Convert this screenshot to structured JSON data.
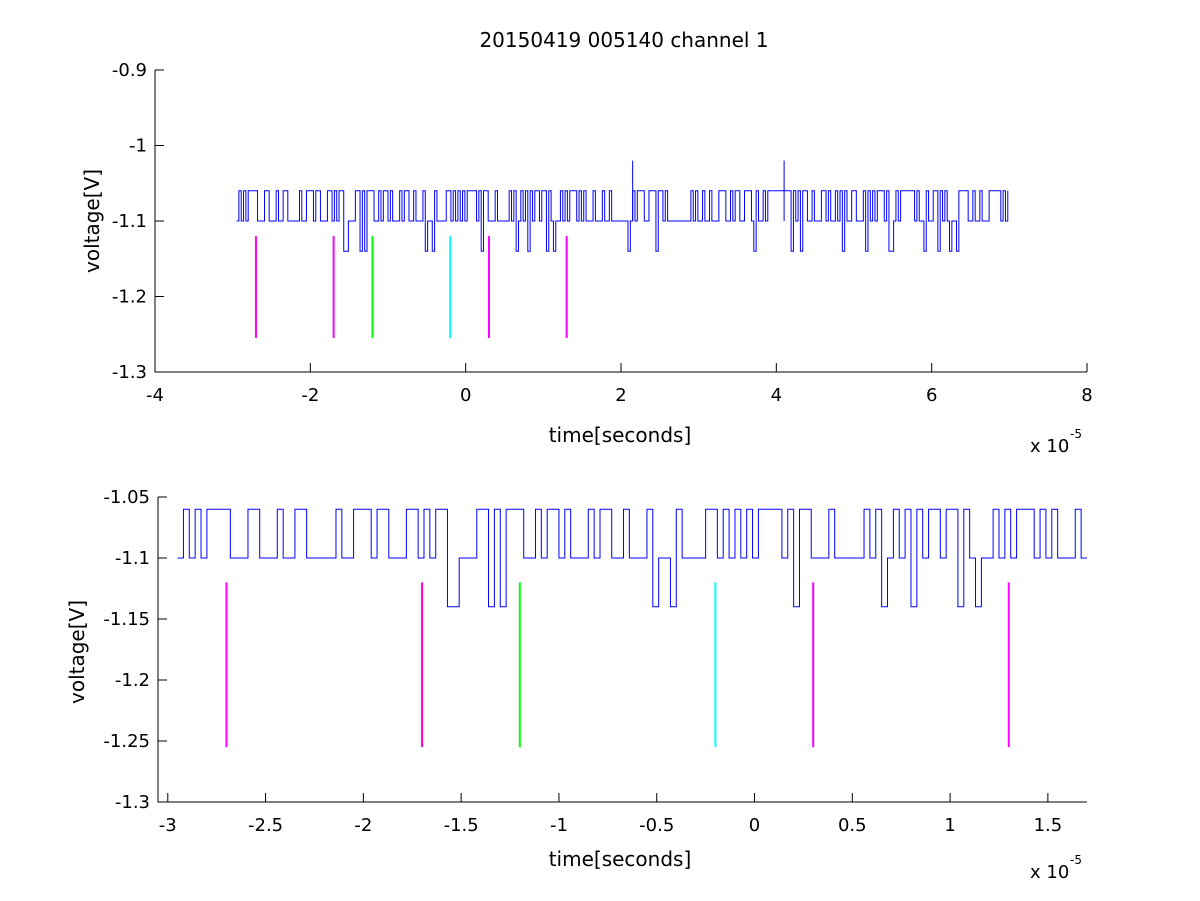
{
  "chart_data": [
    {
      "type": "line",
      "title": "20150419 005140 channel 1",
      "xlabel": "time[seconds]",
      "ylabel": "voltage[V]",
      "x_exponent_label": "x 10",
      "x_exponent": "-5",
      "xlim": [
        -4,
        8
      ],
      "ylim": [
        -1.3,
        -0.9
      ],
      "x_ticks": [
        -4,
        -2,
        0,
        2,
        4,
        6,
        8
      ],
      "x_tick_labels": [
        "-4",
        "-2",
        "0",
        "2",
        "4",
        "6",
        "8"
      ],
      "y_ticks": [
        -1.3,
        -1.2,
        -1.1,
        -1.0,
        -0.9
      ],
      "y_tick_labels": [
        "-1.3",
        "-1.2",
        "-1.1",
        "-1",
        "-0.9"
      ],
      "grid": false,
      "series": [
        {
          "color": "#0000ff",
          "x_range": [
            -2.95,
            7.0
          ],
          "baseline": -1.1,
          "high": -1.06,
          "low": -1.14,
          "spikes": [
            [
              2.15,
              -1.02
            ],
            [
              4.1,
              -1.02
            ]
          ]
        }
      ],
      "markers": [
        {
          "x": -2.7,
          "y_top": -1.12,
          "y_bottom": -1.255,
          "color": "#ff00ff"
        },
        {
          "x": -1.7,
          "y_top": -1.12,
          "y_bottom": -1.255,
          "color": "#ff00ff"
        },
        {
          "x": -1.2,
          "y_top": -1.12,
          "y_bottom": -1.255,
          "color": "#00ff00"
        },
        {
          "x": -0.2,
          "y_top": -1.12,
          "y_bottom": -1.255,
          "color": "#00ffff"
        },
        {
          "x": 0.3,
          "y_top": -1.12,
          "y_bottom": -1.255,
          "color": "#ff00ff"
        },
        {
          "x": 1.3,
          "y_top": -1.12,
          "y_bottom": -1.255,
          "color": "#ff00ff"
        }
      ]
    },
    {
      "type": "line",
      "title": "",
      "xlabel": "time[seconds]",
      "ylabel": "voltage[V]",
      "x_exponent_label": "x 10",
      "x_exponent": "-5",
      "xlim": [
        -3.05,
        1.7
      ],
      "ylim": [
        -1.3,
        -1.05
      ],
      "x_ticks": [
        -3,
        -2.5,
        -2,
        -1.5,
        -1,
        -0.5,
        0,
        0.5,
        1,
        1.5
      ],
      "x_tick_labels": [
        "-3",
        "-2.5",
        "-2",
        "-1.5",
        "-1",
        "-0.5",
        "0",
        "0.5",
        "1",
        "1.5"
      ],
      "y_ticks": [
        -1.3,
        -1.25,
        -1.2,
        -1.15,
        -1.1,
        -1.05
      ],
      "y_tick_labels": [
        "-1.3",
        "-1.25",
        "-1.2",
        "-1.15",
        "-1.1",
        "-1.05"
      ],
      "grid": false,
      "series": [
        {
          "color": "#0000ff",
          "x_range": [
            -2.95,
            1.7
          ],
          "baseline": -1.1,
          "high": -1.06,
          "low": -1.14,
          "spikes": []
        }
      ],
      "markers": [
        {
          "x": -2.7,
          "y_top": -1.12,
          "y_bottom": -1.255,
          "color": "#ff00ff"
        },
        {
          "x": -1.7,
          "y_top": -1.12,
          "y_bottom": -1.255,
          "color": "#ff00ff"
        },
        {
          "x": -1.2,
          "y_top": -1.12,
          "y_bottom": -1.255,
          "color": "#00ff00"
        },
        {
          "x": -0.2,
          "y_top": -1.12,
          "y_bottom": -1.255,
          "color": "#00ffff"
        },
        {
          "x": 0.3,
          "y_top": -1.12,
          "y_bottom": -1.255,
          "color": "#ff00ff"
        },
        {
          "x": 1.3,
          "y_top": -1.12,
          "y_bottom": -1.255,
          "color": "#ff00ff"
        }
      ]
    }
  ]
}
